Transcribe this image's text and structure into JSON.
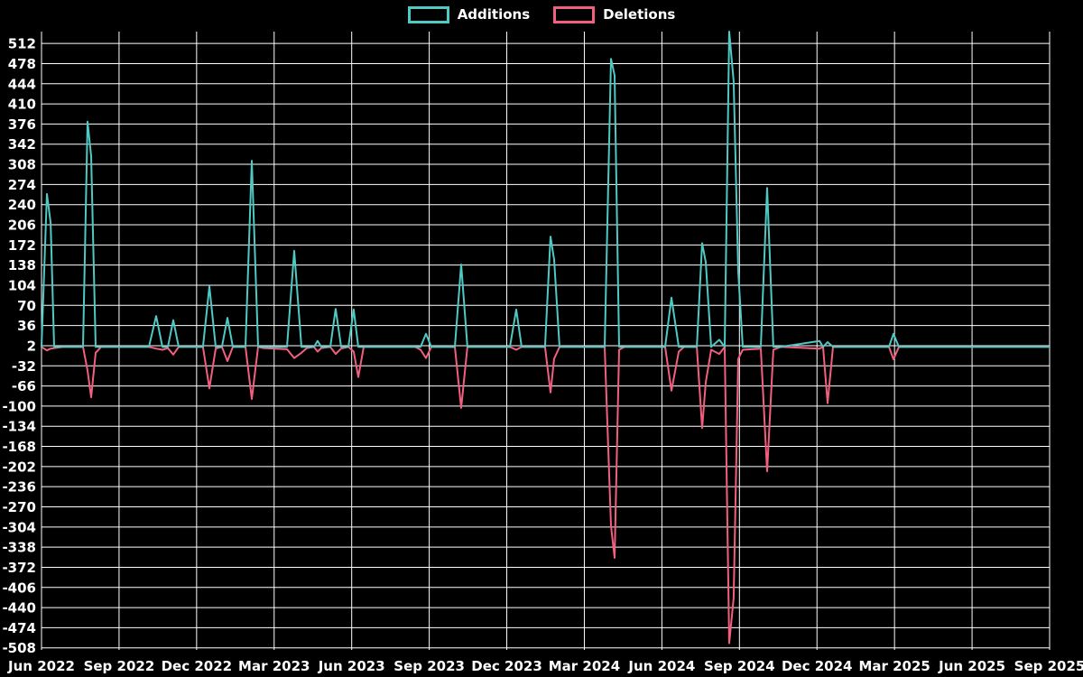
{
  "page": {
    "background": "#000000",
    "grid_color": "#ffffff",
    "text_color": "#ffffff"
  },
  "legend": {
    "position": "top-center",
    "items": [
      {
        "label": "Additions",
        "color": "#4ec9c4"
      },
      {
        "label": "Deletions",
        "color": "#f25f7f"
      }
    ]
  },
  "chart_data": {
    "type": "line",
    "title": "",
    "xlabel": "",
    "ylabel": "",
    "grid": true,
    "legend_position": "top-center",
    "x_axis": {
      "labels": [
        "Jun 2022",
        "Sep 2022",
        "Dec 2022",
        "Mar 2023",
        "Jun 2023",
        "Sep 2023",
        "Dec 2023",
        "Mar 2024",
        "Jun 2024",
        "Sep 2024",
        "Dec 2024",
        "Mar 2025",
        "Jun 2025",
        "Sep 2025"
      ]
    },
    "y_axis": {
      "tick_labels": [
        512,
        478,
        444,
        410,
        376,
        342,
        308,
        274,
        240,
        206,
        172,
        138,
        104,
        70,
        36,
        2,
        -32,
        -66,
        -100,
        -134,
        -168,
        -202,
        -236,
        -270,
        -304,
        -338,
        -372,
        -406,
        -440,
        -474,
        -508
      ],
      "tick_step": 34,
      "value_at_top_edge": 532,
      "value_at_bottom_edge": -516
    },
    "t": [
      0.0,
      0.0054,
      0.009,
      0.0125,
      0.0215,
      0.0412,
      0.0457,
      0.0492,
      0.0537,
      0.0591,
      0.1065,
      0.1137,
      0.12,
      0.1253,
      0.1307,
      0.1361,
      0.1602,
      0.1665,
      0.1728,
      0.179,
      0.1844,
      0.1898,
      0.2023,
      0.2086,
      0.2149,
      0.2202,
      0.2435,
      0.2507,
      0.2578,
      0.2632,
      0.2703,
      0.2739,
      0.2775,
      0.2865,
      0.2918,
      0.2972,
      0.3044,
      0.3097,
      0.3142,
      0.3196,
      0.3706,
      0.376,
      0.3814,
      0.3867,
      0.41,
      0.4163,
      0.4225,
      0.4646,
      0.4709,
      0.4763,
      0.4995,
      0.5049,
      0.5085,
      0.5139,
      0.5586,
      0.5649,
      0.5685,
      0.573,
      0.5783,
      0.6186,
      0.6249,
      0.6321,
      0.6374,
      0.65,
      0.6553,
      0.6589,
      0.6643,
      0.6723,
      0.6777,
      0.6822,
      0.6866,
      0.6911,
      0.6956,
      0.7135,
      0.7198,
      0.726,
      0.7332,
      0.7717,
      0.7753,
      0.7798,
      0.7851,
      0.8406,
      0.8451,
      0.8505,
      1.0
    ],
    "series": [
      {
        "name": "Additions",
        "color": "#4ec9c4",
        "values": [
          0,
          258,
          209,
          0,
          0,
          0,
          380,
          322,
          0,
          0,
          0,
          52,
          0,
          0,
          45,
          0,
          0,
          102,
          0,
          0,
          49,
          0,
          0,
          314,
          0,
          0,
          0,
          162,
          0,
          0,
          0,
          10,
          0,
          0,
          64,
          0,
          0,
          63,
          0,
          0,
          0,
          0,
          22,
          0,
          0,
          139,
          0,
          0,
          63,
          0,
          0,
          186,
          147,
          0,
          0,
          486,
          458,
          0,
          0,
          0,
          83,
          0,
          0,
          0,
          175,
          143,
          0,
          12,
          0,
          532,
          448,
          127,
          0,
          0,
          268,
          0,
          0,
          10,
          0,
          8,
          0,
          0,
          22,
          0,
          0
        ]
      },
      {
        "name": "Deletions",
        "color": "#f25f7f",
        "values": [
          0,
          -6,
          -3,
          -2,
          0,
          0,
          -40,
          -85,
          -10,
          0,
          0,
          -3,
          -5,
          -2,
          -13,
          0,
          0,
          -70,
          -3,
          0,
          -24,
          0,
          0,
          -88,
          0,
          -2,
          -4,
          -19,
          -10,
          -2,
          0,
          -8,
          -2,
          0,
          -12,
          -3,
          0,
          -8,
          -51,
          0,
          0,
          -5,
          -19,
          0,
          0,
          -103,
          0,
          0,
          -5,
          0,
          0,
          -77,
          -20,
          0,
          0,
          -302,
          -356,
          -5,
          0,
          0,
          -74,
          -8,
          0,
          0,
          -137,
          -60,
          -5,
          -12,
          0,
          -500,
          -424,
          -20,
          -5,
          -3,
          -210,
          -5,
          0,
          -3,
          0,
          -95,
          0,
          0,
          -21,
          0,
          0
        ]
      }
    ]
  }
}
